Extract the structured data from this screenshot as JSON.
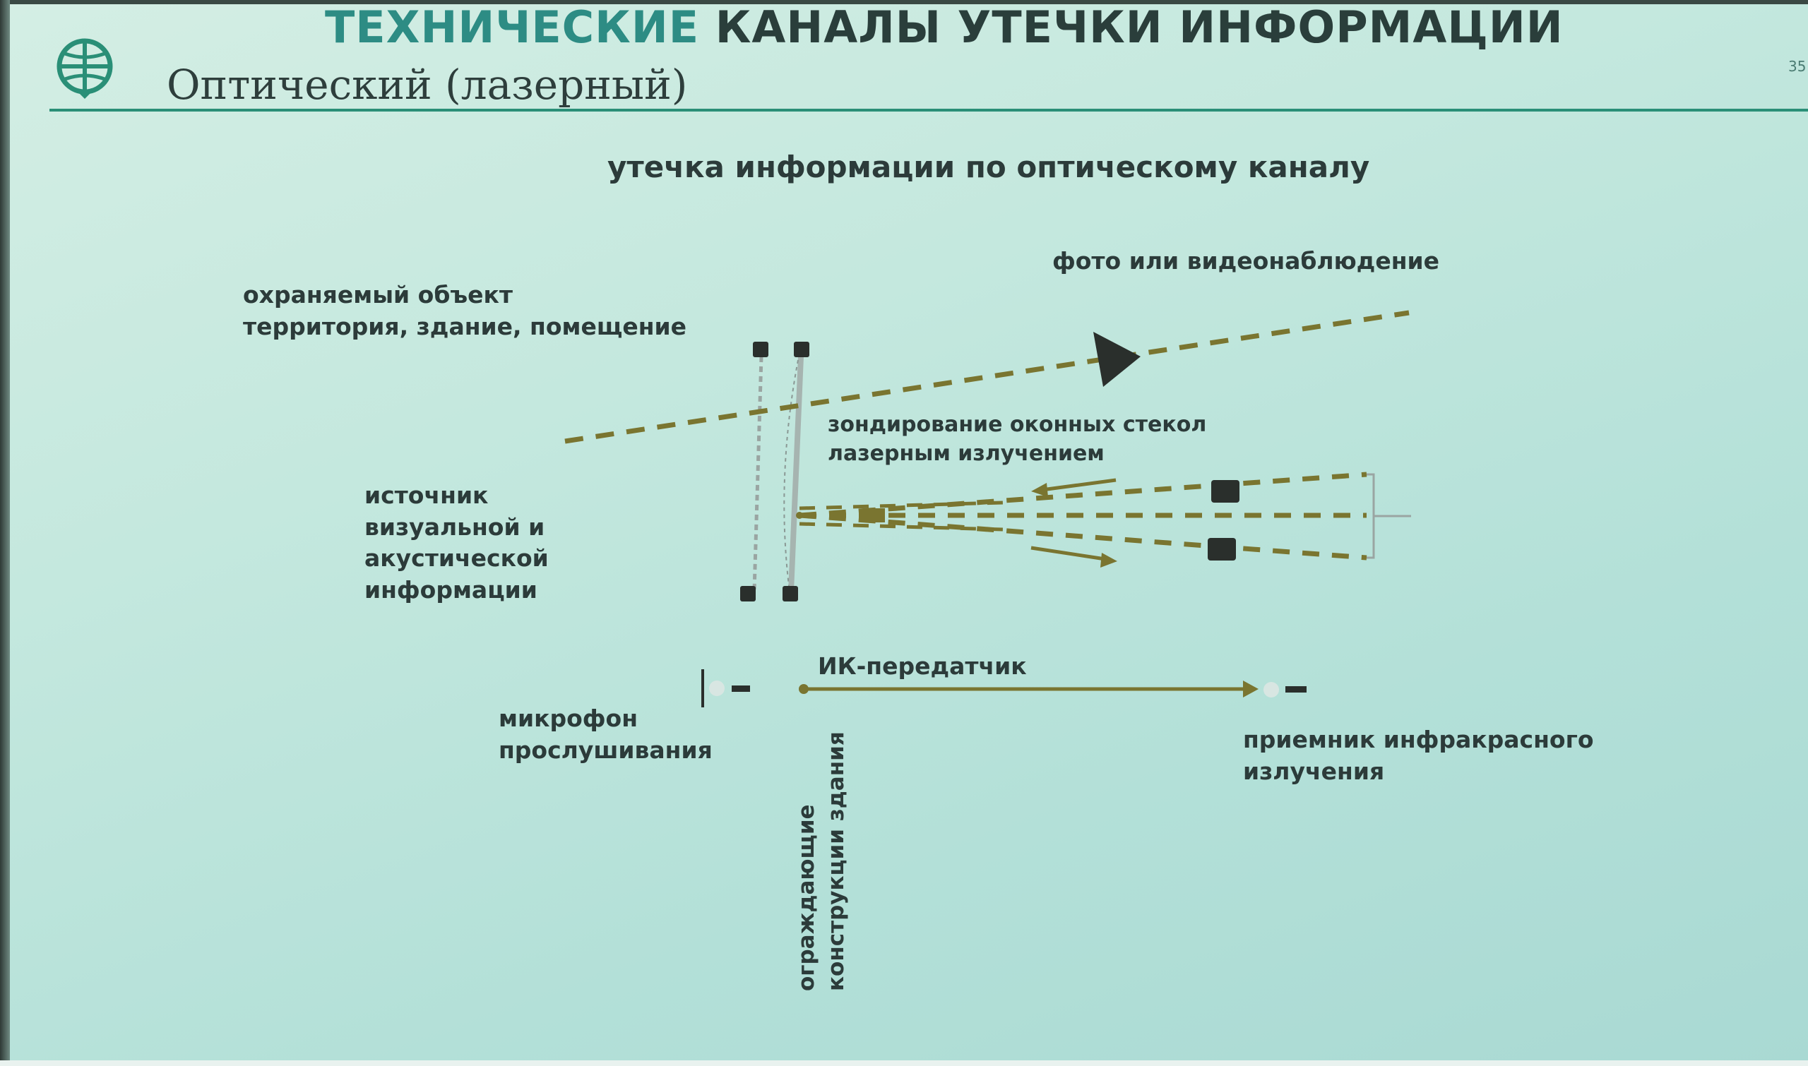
{
  "slide": {
    "title_part1": "ТЕХНИЧЕСКИЕ",
    "title_part2": "КАНАЛЫ УТЕЧКИ ИНФОРМАЦИИ",
    "subtitle": "Оптический (лазерный)",
    "page_number": "35"
  },
  "diagram": {
    "heading": "утечка информации по оптическому каналу",
    "protected_object": [
      "охраняемый объект",
      "территория, здание, помещение"
    ],
    "source": [
      "источник",
      "визуальной и",
      "акустической",
      "информации"
    ],
    "photo_video": "фото или видеонаблюдение",
    "laser_probing": [
      "зондирование оконных стекол",
      "лазерным излучением"
    ],
    "ir_transmitter": "ИК-передатчик",
    "microphone": [
      "микрофон",
      "прослушивания"
    ],
    "ir_receiver": [
      "приемник инфракрасного",
      "излучения"
    ],
    "building_structures": [
      "ограждающие",
      "конструкции здания"
    ]
  },
  "colors": {
    "accent_title": "#2d8c84",
    "rule": "#2a8f77",
    "beam": "#7a7530",
    "device": "#2a2f2c"
  }
}
